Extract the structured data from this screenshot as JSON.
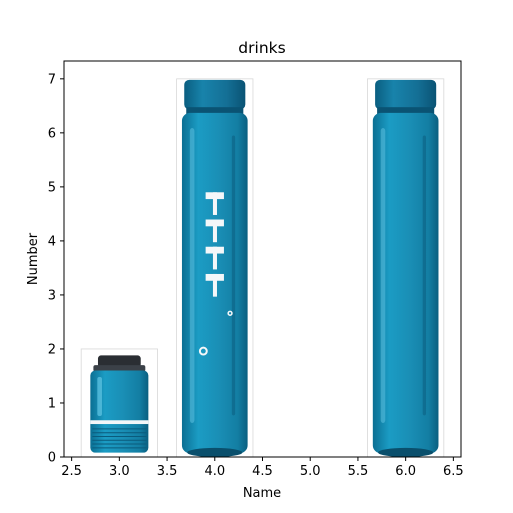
{
  "chart_data": {
    "type": "bar",
    "title": "drinks",
    "xlabel": "Name",
    "ylabel": "Number",
    "xlim": [
      2.42,
      6.58
    ],
    "ylim": [
      0,
      7.33
    ],
    "xticks": [
      "2.5",
      "3.0",
      "3.5",
      "4.0",
      "4.5",
      "5.0",
      "5.5",
      "6.0",
      "6.5"
    ],
    "yticks": [
      "0",
      "1",
      "2",
      "3",
      "4",
      "5",
      "6",
      "7"
    ],
    "grid": false,
    "bar_style": "pictograph (drink bottle images)",
    "colors": {
      "bottle": "#1a8fb6",
      "bottle_dark": "#0e6a8c",
      "bottle_light": "#5cc1e0",
      "cap": "#0f6c92"
    },
    "bars": [
      {
        "x": 3.0,
        "value": 2,
        "width": 0.8,
        "image": "short-bottle-with-black-cap"
      },
      {
        "x": 4.0,
        "value": 7,
        "width": 0.8,
        "image": "tall-bottle-with-white-logo"
      },
      {
        "x": 6.0,
        "value": 7,
        "width": 0.8,
        "image": "tall-bottle-plain"
      }
    ]
  }
}
